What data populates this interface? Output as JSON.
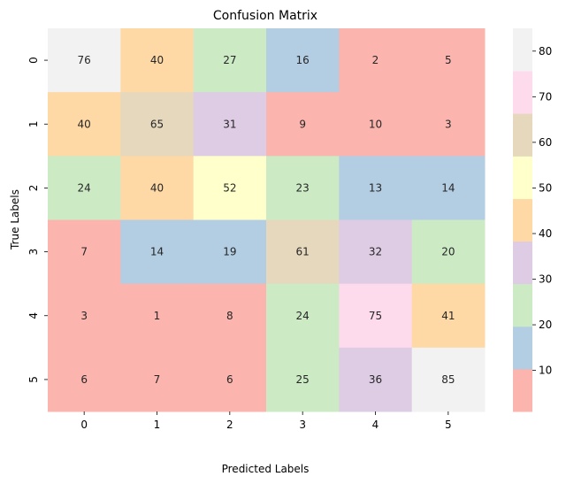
{
  "chart_data": {
    "type": "heatmap",
    "title": "Confusion Matrix",
    "xlabel": "Predicted Labels",
    "ylabel": "True Labels",
    "x_categories": [
      "0",
      "1",
      "2",
      "3",
      "4",
      "5"
    ],
    "y_categories": [
      "0",
      "1",
      "2",
      "3",
      "4",
      "5"
    ],
    "values": [
      [
        76,
        40,
        27,
        16,
        2,
        5
      ],
      [
        40,
        65,
        31,
        9,
        10,
        3
      ],
      [
        24,
        40,
        52,
        23,
        13,
        14
      ],
      [
        7,
        14,
        19,
        61,
        32,
        20
      ],
      [
        3,
        1,
        8,
        24,
        75,
        41
      ],
      [
        6,
        7,
        6,
        25,
        36,
        85
      ]
    ],
    "colormap": "Pastel1",
    "color_range": [
      1,
      85
    ],
    "colorbar_ticks": [
      10,
      20,
      30,
      40,
      50,
      60,
      70,
      80
    ],
    "colorbar_colors": [
      "#fbb4ae",
      "#b3cde3",
      "#ccebc5",
      "#decbe4",
      "#fed9a6",
      "#ffffcc",
      "#e5d8bd",
      "#fddaec",
      "#f2f2f2"
    ],
    "legend_position": "right"
  }
}
